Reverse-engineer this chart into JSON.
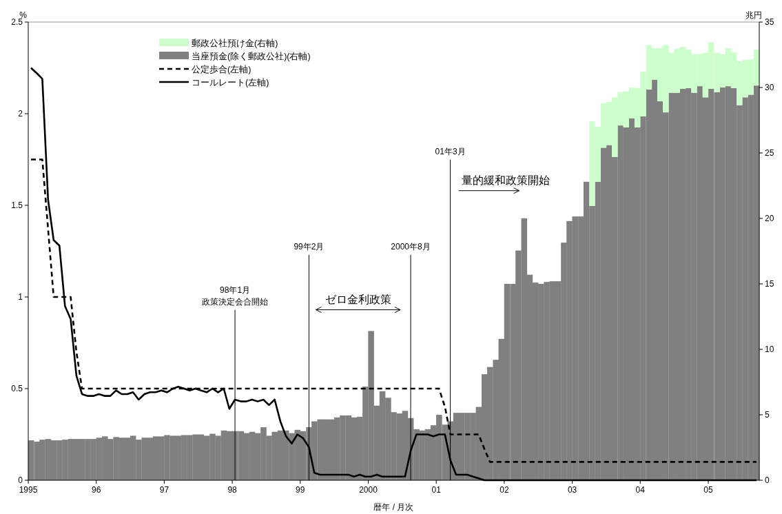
{
  "chart_data": {
    "type": "bar",
    "stacked": true,
    "xlabel": "暦年 / 月次",
    "ylabel": "%",
    "y2label": "兆円",
    "x": [
      "1995-01-16",
      "1995-02-16",
      "1995-03-16",
      "1995-04-16",
      "1995-05-16",
      "1995-06-16",
      "1995-07-16",
      "1995-08-16",
      "1995-09-16",
      "1995-10-16",
      "1995-11-16",
      "1995-12-16",
      "1996-01-16",
      "1996-02-16",
      "1996-03-16",
      "1996-04-16",
      "1996-05-16",
      "1996-06-16",
      "1996-07-16",
      "1996-08-16",
      "1996-09-16",
      "1996-10-16",
      "1996-11-16",
      "1996-12-16",
      "1997-01-16",
      "1997-02-16",
      "1997-03-16",
      "1997-04-16",
      "1997-05-16",
      "1997-06-16",
      "1997-07-16",
      "1997-08-16",
      "1997-09-16",
      "1997-10-16",
      "1997-11-16",
      "1997-12-16",
      "1998-01-16",
      "1998-02-16",
      "1998-03-16",
      "1998-04-16",
      "1998-05-16",
      "1998-06-16",
      "1998-07-16",
      "1998-08-16",
      "1998-09-16",
      "1998-10-16",
      "1998-11-16",
      "1998-12-16",
      "1999-01-16",
      "1999-02-16",
      "1999-03-16",
      "1999-04-16",
      "1999-05-16",
      "1999-06-16",
      "1999-07-16",
      "1999-08-16",
      "1999-09-16",
      "1999-10-16",
      "1999-11-16",
      "1999-12-16",
      "2000-01-16",
      "2000-02-16",
      "2000-03-16",
      "2000-04-16",
      "2000-05-16",
      "2000-06-16",
      "2000-07-16",
      "2000-08-16",
      "2000-09-16",
      "2000-10-16",
      "2000-11-16",
      "2000-12-16",
      "2001-01-16",
      "2001-02-16",
      "2001-03-16",
      "2001-04-16",
      "2001-05-16",
      "2001-06-16",
      "2001-07-16",
      "2001-08-16",
      "2001-09-16",
      "2001-10-16",
      "2001-11-16",
      "2001-12-16",
      "2002-01-16",
      "2002-02-16",
      "2002-03-16",
      "2002-04-16",
      "2002-05-16",
      "2002-06-16",
      "2002-07-16",
      "2002-08-16",
      "2002-09-16",
      "2002-10-16",
      "2002-11-16",
      "2002-12-16",
      "2003-01-16",
      "2003-02-16",
      "2003-03-16",
      "2003-04-16",
      "2003-05-16",
      "2003-06-16",
      "2003-07-16",
      "2003-08-16",
      "2003-09-16",
      "2003-10-16",
      "2003-11-16",
      "2003-12-16",
      "2004-01-16",
      "2004-02-16",
      "2004-03-16",
      "2004-04-16",
      "2004-05-16",
      "2004-06-16",
      "2004-07-16",
      "2004-08-16",
      "2004-09-16",
      "2004-10-16",
      "2004-11-16",
      "2004-12-16",
      "2005-01-16",
      "2005-02-16",
      "2005-03-16",
      "2005-04-16",
      "2005-05-16",
      "2005-06-16",
      "2005-07-16",
      "2005-08-16",
      "2005-09-16"
    ],
    "xlim": [
      "1995-01",
      "2005-10"
    ],
    "xticks": [
      {
        "value": "1995-01",
        "label": "1995"
      },
      {
        "value": "1996-01",
        "label": "96"
      },
      {
        "value": "1997-01",
        "label": "97"
      },
      {
        "value": "1998-01",
        "label": "98"
      },
      {
        "value": "1999-01",
        "label": "99"
      },
      {
        "value": "2000-01",
        "label": "2000"
      },
      {
        "value": "2001-01",
        "label": "01"
      },
      {
        "value": "2002-01",
        "label": "02"
      },
      {
        "value": "2003-01",
        "label": "03"
      },
      {
        "value": "2004-01",
        "label": "04"
      },
      {
        "value": "2005-01",
        "label": "05"
      }
    ],
    "ylim": [
      0,
      2.5
    ],
    "yticks": [
      0,
      0.5,
      1,
      1.5,
      2,
      2.5
    ],
    "y2lim": [
      0,
      35
    ],
    "y2ticks": [
      0,
      5,
      10,
      15,
      20,
      25,
      30,
      35
    ],
    "legend": "top left",
    "series": [
      {
        "name": "当座預金(除く郵政公社)(右軸)",
        "axis": "y2",
        "color": "#808080",
        "values": [
          3.05,
          2.95,
          3.1,
          3.15,
          3.05,
          3.05,
          3.1,
          3.15,
          3.15,
          3.15,
          3.15,
          3.15,
          3.25,
          3.35,
          3.15,
          3.3,
          3.25,
          3.25,
          3.4,
          3.1,
          3.25,
          3.25,
          3.35,
          3.35,
          3.45,
          3.4,
          3.4,
          3.45,
          3.45,
          3.5,
          3.5,
          3.4,
          3.55,
          3.4,
          3.8,
          3.75,
          3.75,
          3.75,
          3.6,
          3.7,
          3.6,
          4.05,
          3.4,
          3.7,
          3.8,
          3.8,
          3.6,
          3.85,
          3.75,
          4.05,
          4.5,
          4.65,
          4.65,
          4.65,
          4.8,
          4.95,
          4.95,
          4.8,
          4.85,
          7.15,
          11.4,
          5.7,
          6.8,
          6.3,
          5.2,
          5.1,
          5.3,
          4.75,
          3.9,
          3.8,
          3.9,
          4.2,
          5.0,
          4.25,
          4.5,
          5.15,
          5.15,
          5.15,
          5.15,
          5.6,
          8.1,
          8.65,
          9.2,
          10.8,
          15.0,
          15.0,
          17.55,
          20.0,
          15.7,
          15.1,
          15.0,
          15.15,
          15.2,
          15.2,
          18.15,
          19.8,
          20.15,
          20.15,
          22.8,
          20.95,
          22.8,
          25.4,
          25.6,
          24.7,
          27.1,
          26.95,
          27.65,
          26.95,
          27.8,
          29.85,
          30.6,
          28.95,
          28.1,
          29.6,
          29.6,
          29.9,
          29.95,
          29.6,
          30.1,
          29.25,
          29.9,
          29.65,
          30.0,
          30.1,
          29.95,
          28.65,
          29.25,
          29.45,
          30.15
        ]
      },
      {
        "name": "郵政公社預け金(右軸)",
        "axis": "y2",
        "color": "#ccffcc",
        "values": [
          null,
          null,
          null,
          null,
          null,
          null,
          null,
          null,
          null,
          null,
          null,
          null,
          null,
          null,
          null,
          null,
          null,
          null,
          null,
          null,
          null,
          null,
          null,
          null,
          null,
          null,
          null,
          null,
          null,
          null,
          null,
          null,
          null,
          null,
          null,
          null,
          null,
          null,
          null,
          null,
          null,
          null,
          null,
          null,
          null,
          null,
          null,
          null,
          null,
          null,
          null,
          null,
          null,
          null,
          null,
          null,
          null,
          null,
          null,
          null,
          null,
          null,
          null,
          null,
          null,
          null,
          null,
          null,
          null,
          null,
          null,
          null,
          null,
          null,
          null,
          null,
          null,
          null,
          null,
          null,
          null,
          null,
          null,
          null,
          null,
          null,
          null,
          null,
          null,
          null,
          null,
          null,
          null,
          null,
          null,
          null,
          null,
          null,
          null,
          6.45,
          4.2,
          3.4,
          3.3,
          4.55,
          2.55,
          2.75,
          2.35,
          3.0,
          3.4,
          3.4,
          2.4,
          4.05,
          5.15,
          3.05,
          3.35,
          3.2,
          2.95,
          2.95,
          2.45,
          3.4,
          3.55,
          3.0,
          2.55,
          2.9,
          2.75,
          3.35,
          2.85,
          2.7,
          2.75
        ]
      },
      {
        "name": "公定歩合(左軸)",
        "type": "line",
        "axis": "y",
        "color": "#000000",
        "line_style": "dashed",
        "values": [
          1.75,
          1.75,
          1.75,
          1.37,
          1.0,
          1.0,
          1.0,
          1.0,
          0.7,
          0.5,
          0.5,
          0.5,
          0.5,
          0.5,
          0.5,
          0.5,
          0.5,
          0.5,
          0.5,
          0.5,
          0.5,
          0.5,
          0.5,
          0.5,
          0.5,
          0.5,
          0.5,
          0.5,
          0.5,
          0.5,
          0.5,
          0.5,
          0.5,
          0.5,
          0.5,
          0.5,
          0.5,
          0.5,
          0.5,
          0.5,
          0.5,
          0.5,
          0.5,
          0.5,
          0.5,
          0.5,
          0.5,
          0.5,
          0.5,
          0.5,
          0.5,
          0.5,
          0.5,
          0.5,
          0.5,
          0.5,
          0.5,
          0.5,
          0.5,
          0.5,
          0.5,
          0.5,
          0.5,
          0.5,
          0.5,
          0.5,
          0.5,
          0.5,
          0.5,
          0.5,
          0.5,
          0.5,
          0.5,
          0.4,
          0.25,
          0.25,
          0.25,
          0.25,
          0.25,
          0.25,
          0.17,
          0.1,
          0.1,
          0.1,
          0.1,
          0.1,
          0.1,
          0.1,
          0.1,
          0.1,
          0.1,
          0.1,
          0.1,
          0.1,
          0.1,
          0.1,
          0.1,
          0.1,
          0.1,
          0.1,
          0.1,
          0.1,
          0.1,
          0.1,
          0.1,
          0.1,
          0.1,
          0.1,
          0.1,
          0.1,
          0.1,
          0.1,
          0.1,
          0.1,
          0.1,
          0.1,
          0.1,
          0.1,
          0.1,
          0.1,
          0.1,
          0.1,
          0.1,
          0.1,
          0.1,
          0.1,
          0.1,
          0.1,
          0.1
        ]
      },
      {
        "name": "コールレート(左軸)",
        "type": "line",
        "axis": "y",
        "color": "#000000",
        "line_style": "solid",
        "values": [
          2.25,
          2.22,
          2.19,
          1.53,
          1.31,
          1.28,
          0.95,
          0.88,
          0.57,
          0.47,
          0.46,
          0.46,
          0.47,
          0.46,
          0.46,
          0.49,
          0.47,
          0.47,
          0.48,
          0.44,
          0.47,
          0.48,
          0.48,
          0.49,
          0.48,
          0.5,
          0.51,
          0.5,
          0.49,
          0.5,
          0.49,
          0.48,
          0.5,
          0.48,
          0.5,
          0.39,
          0.44,
          0.43,
          0.43,
          0.44,
          0.43,
          0.44,
          0.41,
          0.44,
          0.32,
          0.24,
          0.2,
          0.25,
          0.23,
          0.18,
          0.04,
          0.03,
          0.03,
          0.03,
          0.03,
          0.03,
          0.03,
          0.02,
          0.03,
          0.02,
          0.02,
          0.03,
          0.02,
          0.02,
          0.02,
          0.02,
          0.02,
          0.16,
          0.25,
          0.25,
          0.25,
          0.24,
          0.25,
          0.25,
          0.11,
          0.03,
          0.03,
          0.03,
          0.02,
          0.01,
          0,
          0,
          0,
          0,
          0,
          0,
          0,
          0,
          0,
          0,
          0,
          0,
          0,
          0,
          0,
          0,
          0,
          0,
          0,
          0,
          0,
          0,
          0,
          0,
          0,
          0,
          0,
          0,
          0,
          0,
          0,
          0,
          0,
          0,
          0,
          0,
          0,
          0,
          0,
          0,
          0,
          0,
          0,
          0,
          0,
          0,
          0,
          0,
          0
        ]
      }
    ],
    "ref_lines": [
      {
        "axis": "x",
        "value": "1998-01-16",
        "label": "98年1月",
        "color": "#000000"
      },
      {
        "axis": "x",
        "value": "1999-02-16",
        "label": "99年2月",
        "color": "#000000"
      },
      {
        "axis": "x",
        "value": "2000-08-16",
        "label": "2000年8月",
        "color": "#000000"
      },
      {
        "axis": "x",
        "value": "2001-03-16",
        "label": "01年3月",
        "color": "#000000"
      }
    ],
    "annotations": [
      "政策決定会合開始",
      "ゼロ金利政策",
      "量的緩和政策開始"
    ]
  }
}
